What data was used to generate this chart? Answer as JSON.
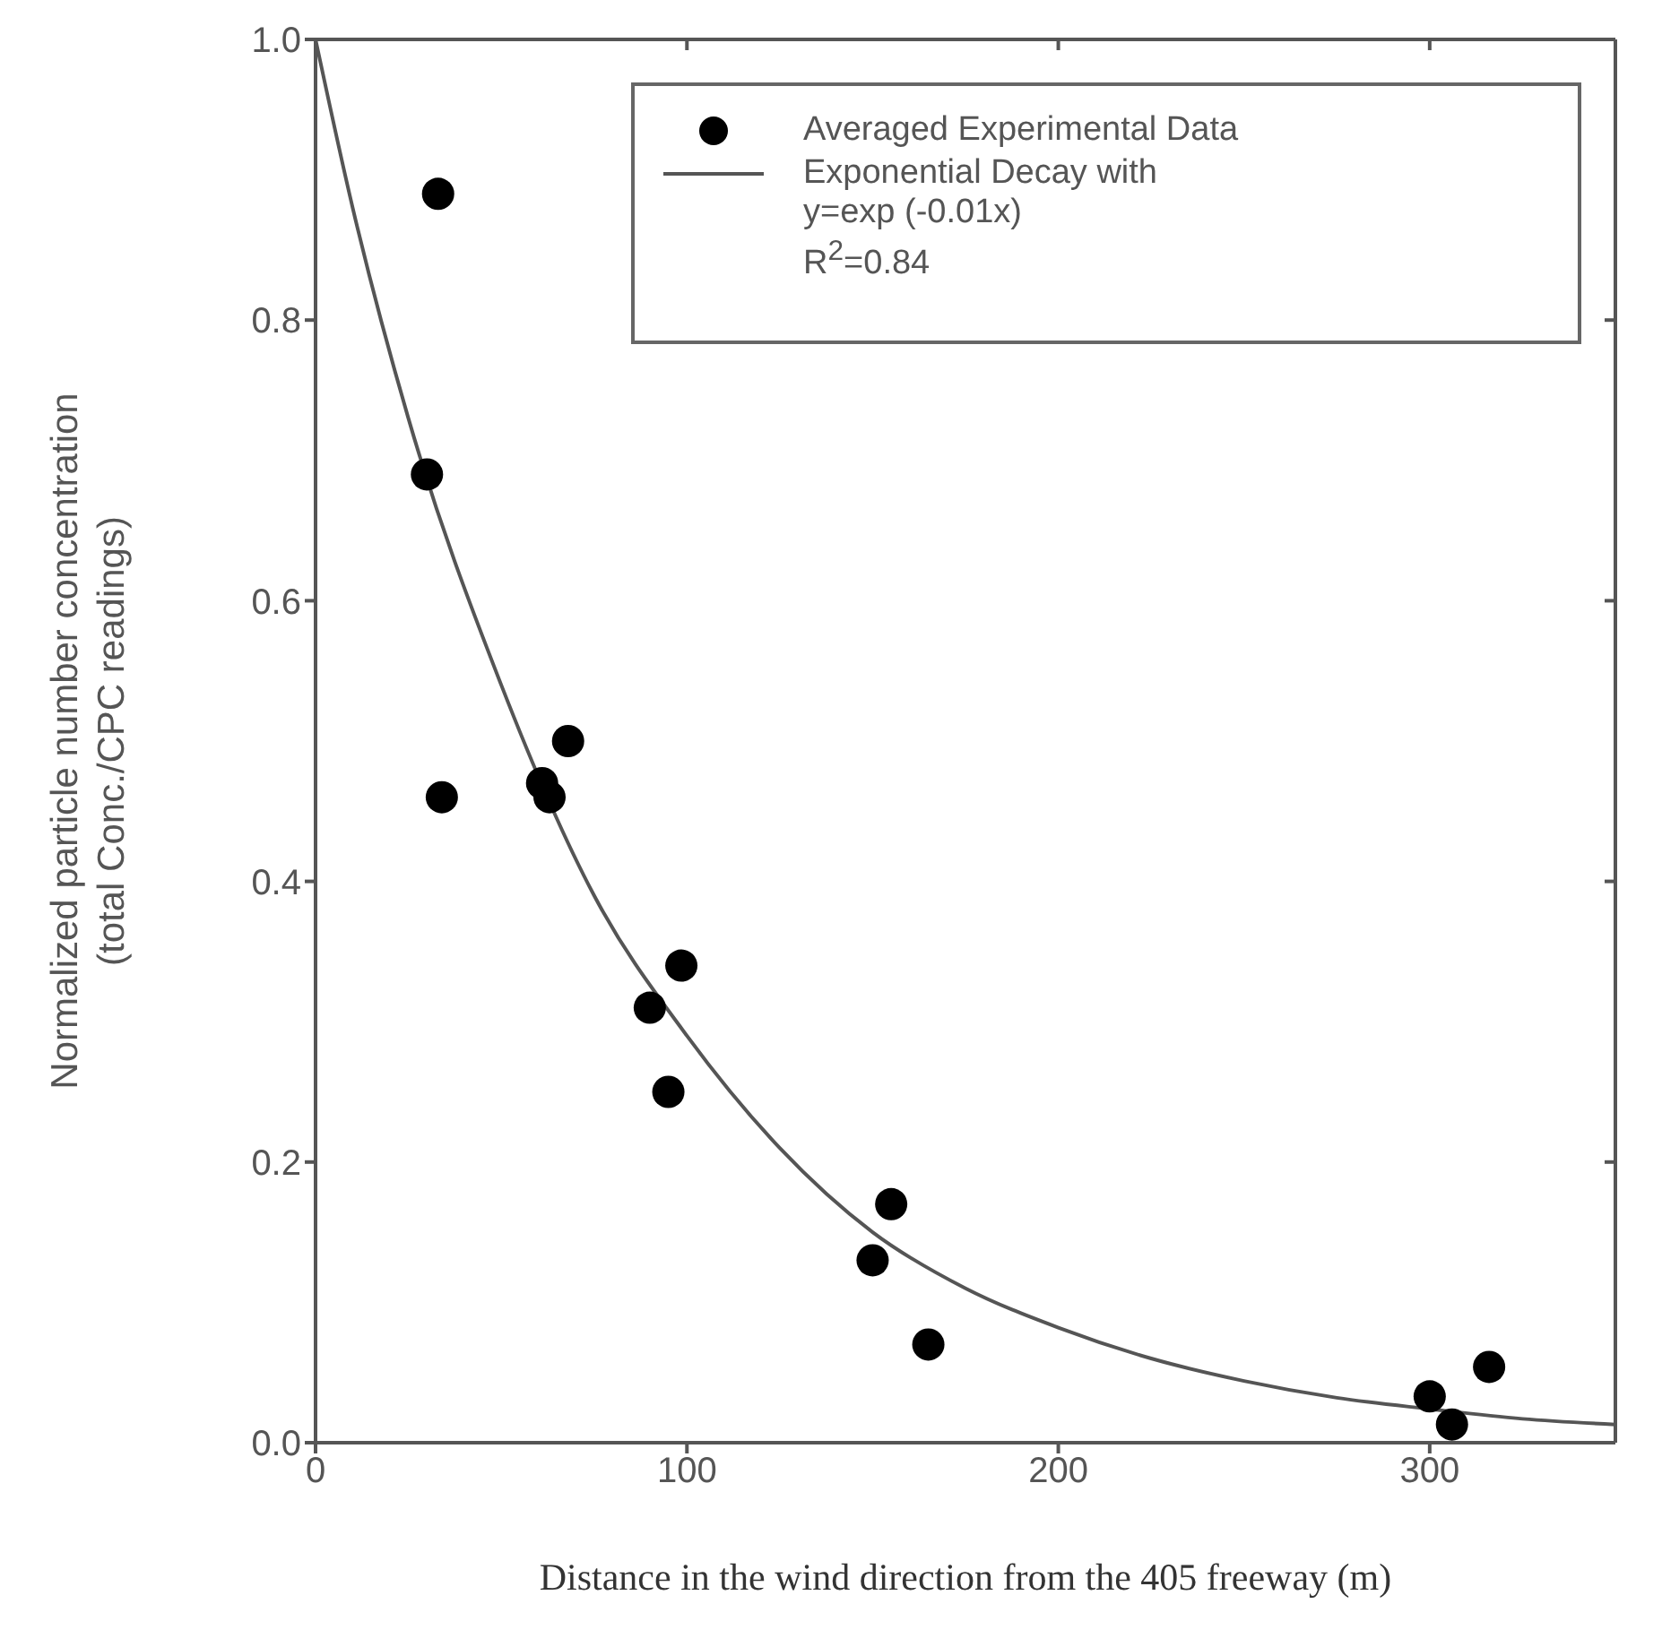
{
  "chart_data": {
    "type": "scatter",
    "xlabel": "Distance in the wind direction from the 405 freeway (m)",
    "ylabel": "Normalized particle number concentration\n(total Conc./CPC readings)",
    "xlim": [
      0,
      350
    ],
    "xticks": [
      0,
      100,
      200,
      300
    ],
    "ylim": [
      0,
      1
    ],
    "yticks": [
      {
        "value": 0,
        "label": "0.0"
      },
      0.2,
      0.4,
      0.6,
      0.8,
      {
        "value": 1,
        "label": "1.0"
      }
    ],
    "legend": "top right",
    "marker": "circle",
    "series": [
      {
        "name": "Averaged Experimental Data",
        "color": "#000000",
        "x": [
          33,
          30,
          34,
          61,
          63,
          68,
          98.5,
          90,
          95,
          155,
          150,
          165,
          300,
          306,
          316
        ],
        "values": [
          0.89,
          0.69,
          0.46,
          0.47,
          0.46,
          0.5,
          0.34,
          0.31,
          0.25,
          0.17,
          0.13,
          0.07,
          0.033,
          0.013,
          0.054
        ]
      },
      {
        "name": "Exponential Decay with\ny=exp (-0.01x)\nR$^{2}$=0.84",
        "type": "line",
        "color": "#555555",
        "marker": "none",
        "x": [
          0,
          10,
          25,
          50,
          75,
          100,
          125,
          150,
          175,
          200,
          225,
          250,
          275,
          300,
          325,
          350
        ],
        "values": [
          1,
          0.88,
          0.73,
          0.54,
          0.39,
          0.29,
          0.21,
          0.15,
          0.11,
          0.082,
          0.06,
          0.044,
          0.032,
          0.024,
          0.017,
          0.013
        ]
      }
    ]
  }
}
